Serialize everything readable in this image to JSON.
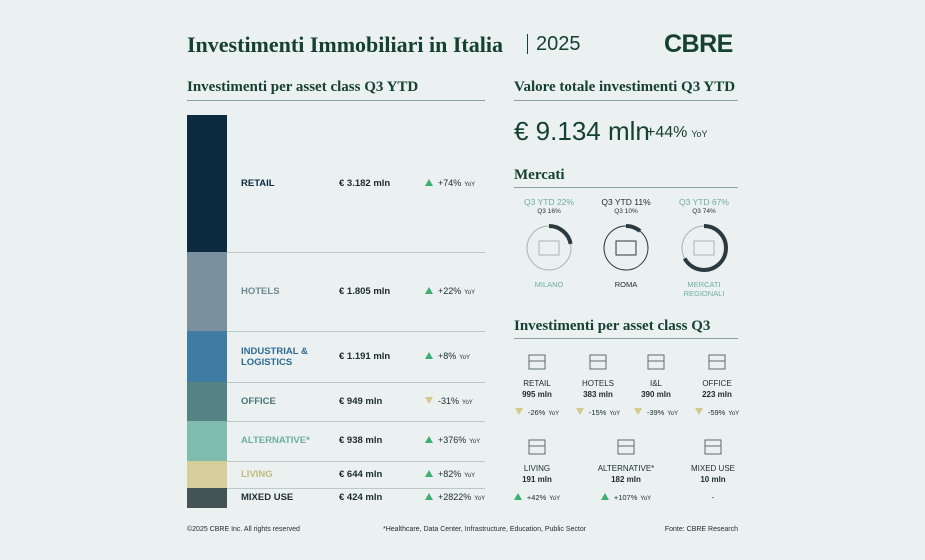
{
  "header": {
    "title": "Investimenti Immobiliari in Italia",
    "year": "2025",
    "logo": "CBRE"
  },
  "yoy_label": "YoY",
  "asset_class_ytd": {
    "title": "Investimenti per asset class Q3 YTD",
    "rows": [
      {
        "name": "RETAIL",
        "value": "€ 3.182 mln",
        "change": "+74%",
        "direction": "up",
        "color": "#0c2a40",
        "text_color": "#0c2a40"
      },
      {
        "name": "HOTELS",
        "value": "€ 1.805 mln",
        "change": "+22%",
        "direction": "up",
        "color": "#7a909c",
        "text_color": "#6f8793"
      },
      {
        "name": "INDUSTRIAL & LOGISTICS",
        "value": "€ 1.191 mln",
        "change": "+8%",
        "direction": "up",
        "color": "#3f7ba2",
        "text_color": "#2f6a93"
      },
      {
        "name": "OFFICE",
        "value": "€ 949 mln",
        "change": "-31%",
        "direction": "down",
        "color": "#548285",
        "text_color": "#4a7477"
      },
      {
        "name": "ALTERNATIVE*",
        "value": "€ 938 mln",
        "change": "+376%",
        "direction": "up",
        "color": "#80bcae",
        "text_color": "#6fae9f"
      },
      {
        "name": "LIVING",
        "value": "€ 644 mln",
        "change": "+82%",
        "direction": "up",
        "color": "#d5ce9b",
        "text_color": "#c2b97c"
      },
      {
        "name": "MIXED USE",
        "value": "€ 424 mln",
        "change": "+2822%",
        "direction": "up",
        "color": "#435356",
        "text_color": "#1f2d33"
      }
    ]
  },
  "total": {
    "title": "Valore totale investimenti Q3 YTD",
    "value": "€ 9.134 mln",
    "change": "+44%"
  },
  "markets": {
    "title": "Mercati",
    "items": [
      {
        "ytd": "Q3 YTD 22%",
        "q3": "Q3 16%",
        "name": "MILANO"
      },
      {
        "ytd": "Q3 YTD 11%",
        "q3": "Q3 10%",
        "name": "ROMA"
      },
      {
        "ytd": "Q3 YTD 67%",
        "q3": "Q3 74%",
        "name": "MERCATI REGIONALI"
      }
    ]
  },
  "asset_class_q3": {
    "title": "Investimenti per asset class Q3",
    "items": [
      {
        "name": "RETAIL",
        "value": "995 mln",
        "change": "-26%",
        "direction": "down"
      },
      {
        "name": "HOTELS",
        "value": "383 mln",
        "change": "-15%",
        "direction": "down"
      },
      {
        "name": "I&L",
        "value": "390 mln",
        "change": "-39%",
        "direction": "down"
      },
      {
        "name": "OFFICE",
        "value": "223 mln",
        "change": "-59%",
        "direction": "down"
      },
      {
        "name": "LIVING",
        "value": "191 mln",
        "change": "+42%",
        "direction": "up"
      },
      {
        "name": "ALTERNATIVE*",
        "value": "182 mln",
        "change": "+107%",
        "direction": "up"
      },
      {
        "name": "MIXED USE",
        "value": "10 mln",
        "change": "-"
      }
    ]
  },
  "footer": {
    "copyright": "©2025 CBRE Inc. All rights reserved",
    "note": "*Healthcare, Data Center, Infrastructure, Education, Public Sector",
    "source": "Fonte: CBRE Research"
  }
}
